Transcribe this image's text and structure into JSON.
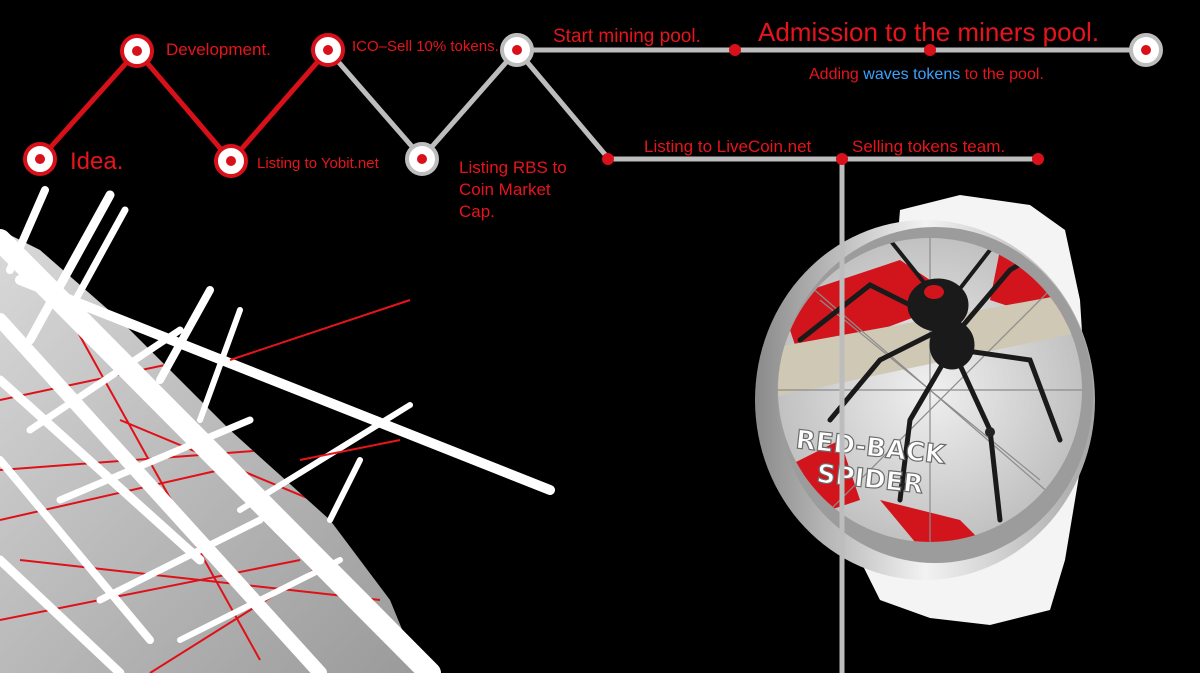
{
  "roadmap": {
    "milestones": {
      "idea": "Idea.",
      "development": "Development.",
      "yobit": "Listing to Yobit.net",
      "ico": "ICO–Sell 10% tokens.",
      "rbs": "Listing RBS to Coin Market Cap.",
      "mining": "Start mining pool.",
      "admission": "Admission to the miners pool.",
      "livecoin": "Listing to LiveCoin.net",
      "selling": "Selling tokens team."
    },
    "adding": {
      "prefix": "Adding ",
      "word1": "waves",
      "space": " ",
      "word2": "tokens",
      "suffix": " to the pool."
    }
  },
  "coin": {
    "line1": "RED-BACK",
    "line2": "SPIDER"
  },
  "colors": {
    "accent": "#e8141c",
    "link": "#3aa3ff",
    "line_active": "#d8101a",
    "line_future": "#bdbdbd",
    "background": "#000000"
  }
}
